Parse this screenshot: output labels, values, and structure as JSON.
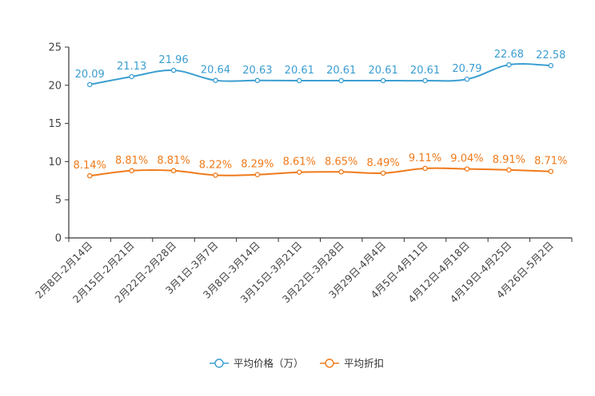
{
  "chart_data": {
    "type": "line",
    "categories": [
      "2月8日-2月14日",
      "2月15日-2月21日",
      "2月22日-2月28日",
      "3月1日-3月7日",
      "3月8日-3月14日",
      "3月15日-3月21日",
      "3月22日-3月28日",
      "3月29日-4月4日",
      "4月5日-4月11日",
      "4月12日-4月18日",
      "4月19日-4月25日",
      "4月26日-5月2日"
    ],
    "series": [
      {
        "name": "平均价格（万）",
        "color": "#3b9ed1",
        "values": [
          20.09,
          21.13,
          21.96,
          20.64,
          20.63,
          20.61,
          20.61,
          20.61,
          20.61,
          20.79,
          22.68,
          22.58
        ],
        "labels": [
          "20.09",
          "21.13",
          "21.96",
          "20.64",
          "20.63",
          "20.61",
          "20.61",
          "20.61",
          "20.61",
          "20.79",
          "22.68",
          "22.58"
        ]
      },
      {
        "name": "平均折扣",
        "color": "#f07a1a",
        "values": [
          8.14,
          8.81,
          8.81,
          8.22,
          8.29,
          8.61,
          8.65,
          8.49,
          9.11,
          9.04,
          8.91,
          8.71
        ],
        "labels": [
          "8.14%",
          "8.81%",
          "8.81%",
          "8.22%",
          "8.29%",
          "8.61%",
          "8.65%",
          "8.49%",
          "9.11%",
          "9.04%",
          "8.91%",
          "8.71%"
        ]
      }
    ],
    "yticks": [
      "0",
      "5",
      "10",
      "15",
      "20",
      "25"
    ],
    "ylim": [
      0,
      25
    ],
    "grid": false,
    "legend": "bottom-center"
  }
}
